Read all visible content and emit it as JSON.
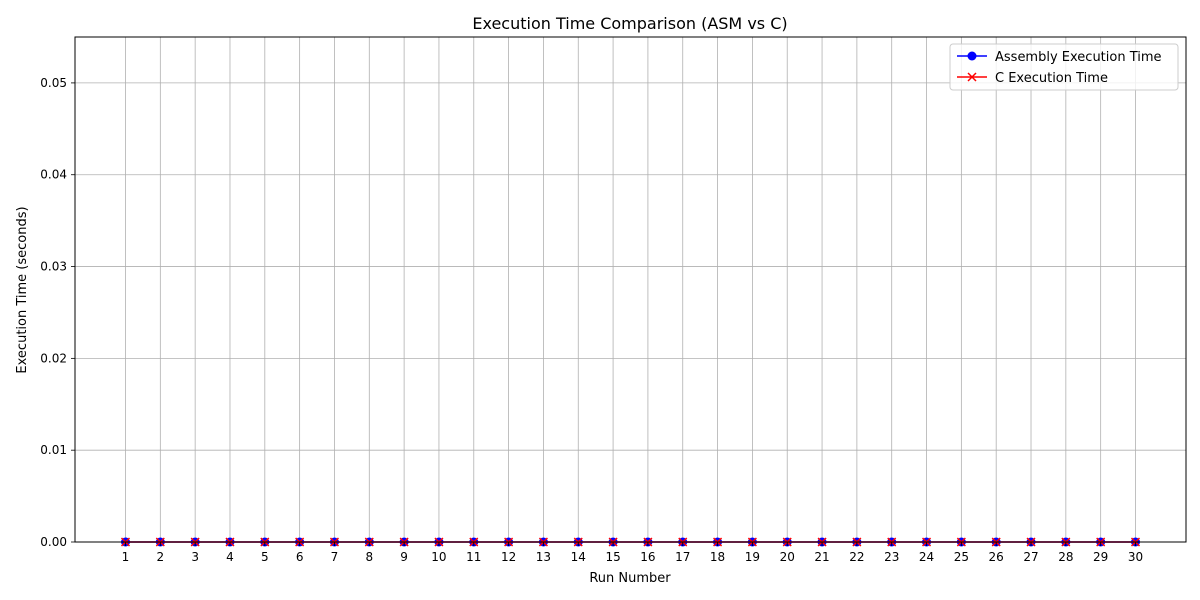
{
  "chart_data": {
    "type": "line",
    "title": "Execution Time Comparison (ASM vs C)",
    "xlabel": "Run Number",
    "ylabel": "Execution Time (seconds)",
    "x": [
      1,
      2,
      3,
      4,
      5,
      6,
      7,
      8,
      9,
      10,
      11,
      12,
      13,
      14,
      15,
      16,
      17,
      18,
      19,
      20,
      21,
      22,
      23,
      24,
      25,
      26,
      27,
      28,
      29,
      30
    ],
    "xlim": [
      -0.45,
      31.45
    ],
    "ylim": [
      0,
      0.055
    ],
    "yticks": [
      0.0,
      0.01,
      0.02,
      0.03,
      0.04,
      0.05
    ],
    "ytick_labels": [
      "0.00",
      "0.01",
      "0.02",
      "0.03",
      "0.04",
      "0.05"
    ],
    "grid": true,
    "legend_position": "top-right",
    "series": [
      {
        "name": "Assembly Execution Time",
        "color": "#0000ff",
        "marker": "circle",
        "values": [
          0,
          0,
          0,
          0,
          0,
          0,
          0,
          0,
          0,
          0,
          0,
          0,
          0,
          0,
          0,
          0,
          0,
          0,
          0,
          0,
          0,
          0,
          0,
          0,
          0,
          0,
          0,
          0,
          0,
          0
        ]
      },
      {
        "name": "C Execution Time",
        "color": "#ff0000",
        "marker": "x",
        "values": [
          0,
          0,
          0,
          0,
          0,
          0,
          0,
          0,
          0,
          0,
          0,
          0,
          0,
          0,
          0,
          0,
          0,
          0,
          0,
          0,
          0,
          0,
          0,
          0,
          0,
          0,
          0,
          0,
          0,
          0
        ]
      }
    ]
  }
}
